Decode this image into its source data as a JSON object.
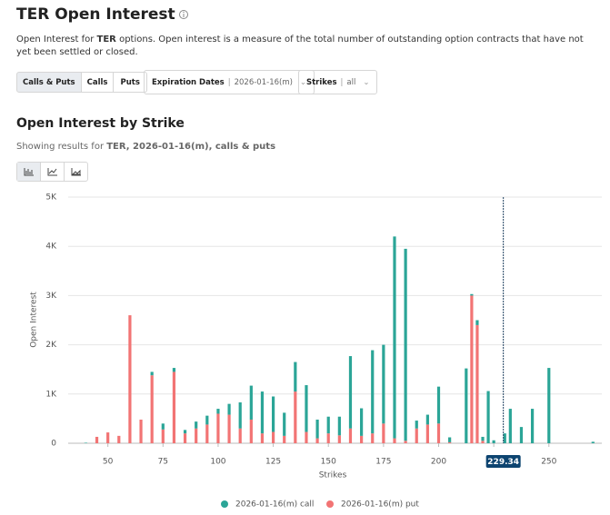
{
  "header": {
    "title": "TER Open Interest",
    "description_parts": [
      "Open Interest for ",
      "TER",
      " options. Open interest is a measure of the total number of outstanding option contracts that have not yet been settled or closed."
    ]
  },
  "controls": {
    "toggle": [
      "Calls & Puts",
      "Calls",
      "Puts"
    ],
    "expiration_label": "Expiration Dates",
    "expiration_value": "2026-01-16(m)",
    "strikes_label": "Strikes",
    "strikes_value": "all"
  },
  "section": {
    "title": "Open Interest by Strike",
    "subtitle_parts": [
      "Showing results for ",
      "TER, 2026-01-16(m), calls & puts"
    ]
  },
  "chart_data": {
    "type": "bar",
    "stacked": true,
    "x_label": "Strikes",
    "y_label": "Open Interest",
    "x": [
      40,
      45,
      50,
      55,
      60,
      65,
      70,
      75,
      80,
      85,
      90,
      95,
      100,
      105,
      110,
      115,
      120,
      125,
      130,
      135,
      140,
      145,
      150,
      155,
      160,
      165,
      170,
      175,
      180,
      185,
      190,
      195,
      200,
      205,
      212.5,
      215,
      217.5,
      220,
      222.5,
      225,
      230,
      232.5,
      237.5,
      242.5,
      250,
      270
    ],
    "series": [
      {
        "name": "2026-01-16(m) put",
        "color": "#f27474",
        "values": [
          0,
          130,
          220,
          150,
          2600,
          480,
          1380,
          280,
          1450,
          200,
          300,
          380,
          600,
          580,
          300,
          480,
          200,
          230,
          150,
          1050,
          230,
          100,
          200,
          160,
          300,
          150,
          200,
          400,
          100,
          50,
          300,
          380,
          400,
          20,
          0,
          3000,
          2400,
          50,
          0,
          0,
          0,
          0,
          0,
          0,
          0,
          0
        ]
      },
      {
        "name": "2026-01-16(m) call",
        "color": "#2ba597",
        "values": [
          10,
          0,
          0,
          0,
          0,
          0,
          70,
          120,
          80,
          70,
          140,
          180,
          100,
          220,
          530,
          690,
          850,
          720,
          470,
          600,
          950,
          380,
          340,
          380,
          1470,
          560,
          1690,
          1600,
          4100,
          3900,
          160,
          200,
          750,
          100,
          1520,
          30,
          100,
          80,
          1060,
          60,
          200,
          700,
          330,
          700,
          1530,
          30
        ]
      }
    ],
    "xlim": [
      32,
      274
    ],
    "ylim": [
      0,
      5000
    ],
    "xticks": [
      50,
      75,
      100,
      125,
      150,
      175,
      200,
      225,
      250
    ],
    "yticks": [
      0,
      {
        "value": 1000,
        "label": "1K"
      },
      {
        "value": 2000,
        "label": "2K"
      },
      {
        "value": 3000,
        "label": "3K"
      },
      {
        "value": 4000,
        "label": "4K"
      },
      {
        "value": 5000,
        "label": "5K"
      }
    ],
    "grid": true,
    "legend": "bottom",
    "cursor": 229.34
  }
}
